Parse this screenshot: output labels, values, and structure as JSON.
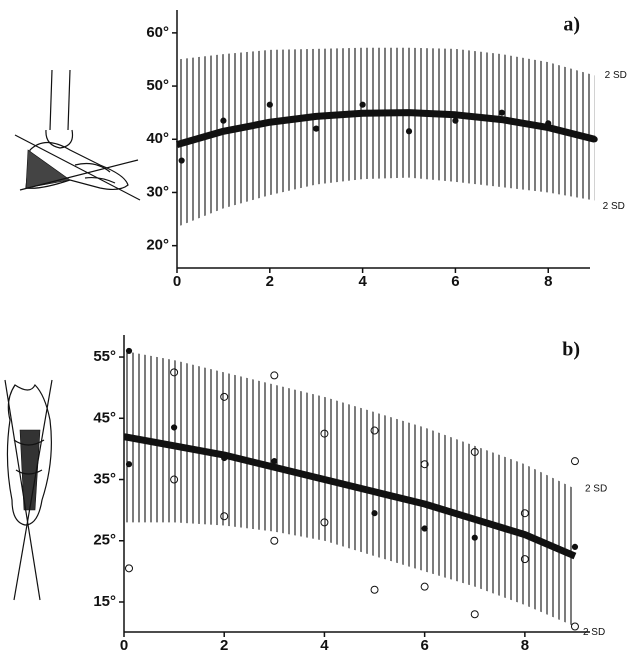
{
  "chart_data": [
    {
      "type": "line",
      "panel_label": "a)",
      "x": [
        0,
        1,
        2,
        3,
        4,
        5,
        6,
        7,
        8,
        9
      ],
      "values": [
        39,
        41.5,
        43.2,
        44.3,
        44.9,
        45,
        44.6,
        43.7,
        42.2,
        40
      ],
      "band": {
        "upper": [
          55,
          56,
          56.8,
          57,
          57.2,
          57.2,
          57,
          56,
          54.5,
          52
        ],
        "lower": [
          23.5,
          27,
          29.5,
          31.5,
          32.5,
          32.8,
          32,
          31,
          30,
          28.5
        ],
        "upper_label": "2 SD",
        "lower_label": "2 SD"
      },
      "points": [
        {
          "marker": "filled",
          "x": [
            0.1,
            1,
            2,
            3,
            4,
            5,
            6,
            7,
            8,
            9
          ],
          "y": [
            36,
            43.5,
            46.5,
            42,
            46.5,
            41.5,
            43.5,
            45,
            43,
            40
          ]
        }
      ],
      "xlim": [
        0,
        8.9
      ],
      "ylim": [
        15.8,
        64.3
      ],
      "xticks": [
        0,
        2,
        4,
        6,
        8
      ],
      "yticks": [
        {
          "value": 20,
          "label": "20°"
        },
        {
          "value": 30,
          "label": "30°"
        },
        {
          "value": 40,
          "label": "40°"
        },
        {
          "value": 50,
          "label": "50°"
        },
        {
          "value": 60,
          "label": "60°"
        }
      ],
      "color": "#111111"
    },
    {
      "type": "line",
      "panel_label": "b)",
      "x": [
        0,
        1,
        2,
        3,
        4,
        5,
        6,
        7,
        8,
        9
      ],
      "values": [
        42,
        40.5,
        39,
        37,
        35,
        33,
        31,
        28.5,
        26,
        22.5
      ],
      "band": {
        "upper": [
          56,
          54.5,
          52.5,
          50.5,
          48.5,
          46,
          43.5,
          40.5,
          37.5,
          33.5
        ],
        "lower": [
          28,
          28,
          27.5,
          26.5,
          25,
          22.5,
          20,
          17.5,
          14.5,
          11
        ],
        "upper_label": "2 SD",
        "lower_label": "2 SD"
      },
      "points": [
        {
          "marker": "filled",
          "x": [
            0.1,
            0.1,
            1,
            2,
            3,
            4,
            5,
            6,
            7,
            9
          ],
          "y": [
            56,
            37.5,
            43.5,
            38.5,
            38,
            35,
            29.5,
            27,
            25.5,
            24
          ]
        },
        {
          "marker": "open",
          "x": [
            0.1,
            1,
            1,
            2,
            2,
            3,
            3,
            4,
            4,
            5,
            5,
            6,
            6,
            7,
            7,
            8,
            8,
            9,
            9
          ],
          "y": [
            20.5,
            52.5,
            35,
            48.5,
            29,
            52,
            25,
            42.5,
            28,
            43,
            17,
            37.5,
            17.5,
            39.5,
            13,
            29.5,
            22,
            38,
            11
          ]
        }
      ],
      "xlim": [
        0,
        9.3
      ],
      "ylim": [
        10.1,
        58.6
      ],
      "xticks": [
        0,
        2,
        4,
        6,
        8
      ],
      "yticks": [
        {
          "value": 15,
          "label": "15°"
        },
        {
          "value": 25,
          "label": "25°"
        },
        {
          "value": 35,
          "label": "35°"
        },
        {
          "value": 45,
          "label": "45°"
        },
        {
          "value": 55,
          "label": "55°"
        }
      ],
      "color": "#111111"
    }
  ]
}
